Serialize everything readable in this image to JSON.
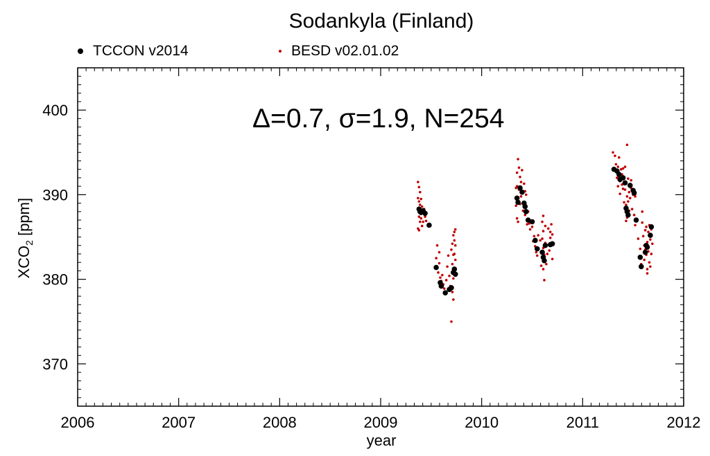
{
  "chart_data": {
    "type": "scatter",
    "title": "Sodankyla (Finland)",
    "annotation": "Δ=0.7, σ=1.9, N=254",
    "xlabel": "year",
    "ylabel": {
      "main": "XCO",
      "sub": "2",
      "unit": " [ppm]"
    },
    "xlim": [
      2006,
      2012
    ],
    "ylim": [
      365,
      405
    ],
    "xticks": [
      2006,
      2007,
      2008,
      2009,
      2010,
      2011,
      2012
    ],
    "xtick_labels": [
      "2006",
      "2007",
      "2008",
      "2009",
      "2010",
      "2011",
      "2012"
    ],
    "yticks": [
      370,
      380,
      390,
      400
    ],
    "ytick_labels": [
      "370",
      "380",
      "390",
      "400"
    ],
    "legend_placement": "top",
    "series": [
      {
        "name": "TCCON v2014",
        "color": "#000000",
        "marker": "large-dot",
        "points": [
          [
            2009.38,
            388.3
          ],
          [
            2009.39,
            388.0
          ],
          [
            2009.4,
            387.9
          ],
          [
            2009.42,
            388.1
          ],
          [
            2009.44,
            387.8
          ],
          [
            2009.48,
            386.4
          ],
          [
            2009.55,
            381.4
          ],
          [
            2009.59,
            379.6
          ],
          [
            2009.6,
            379.2
          ],
          [
            2009.64,
            378.4
          ],
          [
            2009.68,
            378.8
          ],
          [
            2009.7,
            379.0
          ],
          [
            2009.72,
            380.8
          ],
          [
            2009.73,
            381.2
          ],
          [
            2009.74,
            380.6
          ],
          [
            2010.35,
            389.6
          ],
          [
            2010.36,
            389.1
          ],
          [
            2010.38,
            390.8
          ],
          [
            2010.4,
            390.3
          ],
          [
            2010.42,
            389.0
          ],
          [
            2010.43,
            388.6
          ],
          [
            2010.44,
            388.0
          ],
          [
            2010.46,
            387.0
          ],
          [
            2010.5,
            386.8
          ],
          [
            2010.53,
            384.6
          ],
          [
            2010.55,
            383.6
          ],
          [
            2010.6,
            383.2
          ],
          [
            2010.61,
            382.6
          ],
          [
            2010.62,
            382.2
          ],
          [
            2010.63,
            384.0
          ],
          [
            2010.68,
            384.1
          ],
          [
            2010.7,
            384.2
          ],
          [
            2011.31,
            393.0
          ],
          [
            2011.34,
            392.8
          ],
          [
            2011.36,
            392.4
          ],
          [
            2011.37,
            391.8
          ],
          [
            2011.4,
            392.0
          ],
          [
            2011.42,
            391.4
          ],
          [
            2011.43,
            388.4
          ],
          [
            2011.44,
            388.0
          ],
          [
            2011.45,
            387.6
          ],
          [
            2011.47,
            391.1
          ],
          [
            2011.5,
            390.5
          ],
          [
            2011.51,
            390.2
          ],
          [
            2011.53,
            387.0
          ],
          [
            2011.57,
            382.6
          ],
          [
            2011.58,
            381.5
          ],
          [
            2011.62,
            383.2
          ],
          [
            2011.63,
            384.0
          ],
          [
            2011.64,
            383.8
          ],
          [
            2011.67,
            385.2
          ],
          [
            2011.68,
            386.2
          ]
        ]
      },
      {
        "name": "BESD v02.01.02",
        "color": "#c00000",
        "marker": "small-dot",
        "points": [
          [
            2009.37,
            391.5
          ],
          [
            2009.37,
            389.6
          ],
          [
            2009.37,
            386.0
          ],
          [
            2009.38,
            390.9
          ],
          [
            2009.38,
            389.2
          ],
          [
            2009.38,
            387.4
          ],
          [
            2009.38,
            385.8
          ],
          [
            2009.39,
            390.3
          ],
          [
            2009.39,
            388.8
          ],
          [
            2009.39,
            386.8
          ],
          [
            2009.4,
            389.5
          ],
          [
            2009.4,
            387.2
          ],
          [
            2009.41,
            388.6
          ],
          [
            2009.41,
            386.3
          ],
          [
            2009.42,
            387.9
          ],
          [
            2009.42,
            386.8
          ],
          [
            2009.43,
            388.3
          ],
          [
            2009.44,
            387.4
          ],
          [
            2009.45,
            386.9
          ],
          [
            2009.55,
            382.5
          ],
          [
            2009.56,
            384.0
          ],
          [
            2009.57,
            380.8
          ],
          [
            2009.58,
            383.2
          ],
          [
            2009.58,
            381.9
          ],
          [
            2009.59,
            380.2
          ],
          [
            2009.6,
            379.8
          ],
          [
            2009.61,
            380.5
          ],
          [
            2009.62,
            379.4
          ],
          [
            2009.63,
            378.9
          ],
          [
            2009.64,
            378.3
          ],
          [
            2009.65,
            379.9
          ],
          [
            2009.66,
            381.5
          ],
          [
            2009.67,
            382.8
          ],
          [
            2009.68,
            380.4
          ],
          [
            2009.69,
            379.2
          ],
          [
            2009.7,
            375.0
          ],
          [
            2009.7,
            383.5
          ],
          [
            2009.71,
            384.2
          ],
          [
            2009.71,
            381.8
          ],
          [
            2009.71,
            378.5
          ],
          [
            2009.72,
            385.2
          ],
          [
            2009.72,
            382.9
          ],
          [
            2009.72,
            380.1
          ],
          [
            2009.72,
            377.6
          ],
          [
            2009.73,
            385.6
          ],
          [
            2009.73,
            384.6
          ],
          [
            2009.73,
            383.0
          ],
          [
            2009.73,
            381.0
          ],
          [
            2009.74,
            385.9
          ],
          [
            2009.74,
            384.0
          ],
          [
            2009.74,
            382.3
          ],
          [
            2010.34,
            390.8
          ],
          [
            2010.34,
            388.7
          ],
          [
            2010.35,
            392.6
          ],
          [
            2010.35,
            391.0
          ],
          [
            2010.35,
            387.2
          ],
          [
            2010.36,
            394.2
          ],
          [
            2010.36,
            389.6
          ],
          [
            2010.36,
            386.8
          ],
          [
            2010.37,
            393.2
          ],
          [
            2010.37,
            390.6
          ],
          [
            2010.38,
            392.1
          ],
          [
            2010.38,
            388.9
          ],
          [
            2010.39,
            391.5
          ],
          [
            2010.39,
            389.8
          ],
          [
            2010.4,
            392.9
          ],
          [
            2010.4,
            390.2
          ],
          [
            2010.41,
            388.1
          ],
          [
            2010.42,
            391.3
          ],
          [
            2010.42,
            389.0
          ],
          [
            2010.43,
            390.4
          ],
          [
            2010.43,
            387.6
          ],
          [
            2010.44,
            390.0
          ],
          [
            2010.44,
            388.5
          ],
          [
            2010.45,
            386.5
          ],
          [
            2010.46,
            388.0
          ],
          [
            2010.47,
            386.6
          ],
          [
            2010.48,
            385.9
          ],
          [
            2010.5,
            386.2
          ],
          [
            2010.51,
            384.5
          ],
          [
            2010.52,
            385.1
          ],
          [
            2010.53,
            383.9
          ],
          [
            2010.54,
            383.2
          ],
          [
            2010.55,
            382.8
          ],
          [
            2010.56,
            385.2
          ],
          [
            2010.58,
            384.6
          ],
          [
            2010.59,
            381.6
          ],
          [
            2010.6,
            386.8
          ],
          [
            2010.6,
            384.8
          ],
          [
            2010.61,
            387.5
          ],
          [
            2010.61,
            385.7
          ],
          [
            2010.61,
            383.7
          ],
          [
            2010.61,
            381.2
          ],
          [
            2010.62,
            379.9
          ],
          [
            2010.62,
            382.9
          ],
          [
            2010.63,
            384.3
          ],
          [
            2010.63,
            386.3
          ],
          [
            2010.64,
            381.8
          ],
          [
            2010.65,
            383.0
          ],
          [
            2010.66,
            386.0
          ],
          [
            2010.67,
            383.4
          ],
          [
            2010.68,
            385.6
          ],
          [
            2010.68,
            384.9
          ],
          [
            2010.69,
            386.5
          ],
          [
            2010.7,
            385.3
          ],
          [
            2010.7,
            382.4
          ],
          [
            2011.3,
            395.0
          ],
          [
            2011.31,
            392.9
          ],
          [
            2011.32,
            394.6
          ],
          [
            2011.33,
            393.6
          ],
          [
            2011.34,
            392.0
          ],
          [
            2011.35,
            393.3
          ],
          [
            2011.35,
            391.0
          ],
          [
            2011.36,
            394.4
          ],
          [
            2011.36,
            392.2
          ],
          [
            2011.37,
            391.6
          ],
          [
            2011.37,
            390.1
          ],
          [
            2011.38,
            393.0
          ],
          [
            2011.39,
            392.4
          ],
          [
            2011.39,
            391.2
          ],
          [
            2011.4,
            393.1
          ],
          [
            2011.4,
            390.7
          ],
          [
            2011.41,
            392.0
          ],
          [
            2011.41,
            389.1
          ],
          [
            2011.42,
            393.3
          ],
          [
            2011.42,
            390.6
          ],
          [
            2011.43,
            388.8
          ],
          [
            2011.43,
            386.9
          ],
          [
            2011.44,
            395.9
          ],
          [
            2011.44,
            389.8
          ],
          [
            2011.44,
            387.3
          ],
          [
            2011.45,
            391.9
          ],
          [
            2011.45,
            389.2
          ],
          [
            2011.46,
            390.3
          ],
          [
            2011.46,
            388.1
          ],
          [
            2011.47,
            389.6
          ],
          [
            2011.48,
            391.7
          ],
          [
            2011.48,
            390.8
          ],
          [
            2011.49,
            388.3
          ],
          [
            2011.5,
            390.0
          ],
          [
            2011.51,
            387.6
          ],
          [
            2011.52,
            389.8
          ],
          [
            2011.52,
            386.4
          ],
          [
            2011.55,
            384.8
          ],
          [
            2011.57,
            383.6
          ],
          [
            2011.58,
            381.8
          ],
          [
            2011.59,
            386.7
          ],
          [
            2011.59,
            388.0
          ],
          [
            2011.6,
            385.1
          ],
          [
            2011.61,
            384.0
          ],
          [
            2011.61,
            382.3
          ],
          [
            2011.62,
            385.8
          ],
          [
            2011.62,
            383.5
          ],
          [
            2011.63,
            386.2
          ],
          [
            2011.63,
            382.9
          ],
          [
            2011.64,
            384.4
          ],
          [
            2011.64,
            381.2
          ],
          [
            2011.64,
            380.7
          ],
          [
            2011.65,
            385.6
          ],
          [
            2011.65,
            383.3
          ],
          [
            2011.66,
            386.4
          ],
          [
            2011.66,
            382.0
          ],
          [
            2011.67,
            384.7
          ],
          [
            2011.67,
            381.5
          ],
          [
            2011.68,
            383.0
          ],
          [
            2011.68,
            385.9
          ],
          [
            2011.69,
            384.2
          ]
        ]
      }
    ]
  }
}
